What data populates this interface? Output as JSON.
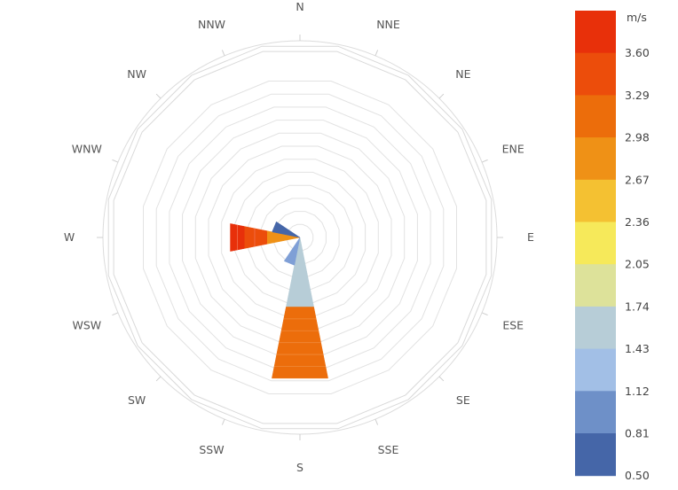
{
  "chart_data": {
    "type": "windrose",
    "unit": "m/s",
    "directions": [
      "N",
      "NNE",
      "NE",
      "ENE",
      "E",
      "ESE",
      "SE",
      "SSE",
      "S",
      "SSW",
      "SW",
      "WSW",
      "W",
      "WNW",
      "NW",
      "NNW"
    ],
    "ring_count": 12,
    "legend": {
      "unit_label": "m/s",
      "ticks": [
        "3.60",
        "3.29",
        "2.98",
        "2.67",
        "2.36",
        "2.05",
        "1.74",
        "1.43",
        "1.12",
        "0.81",
        "0.50"
      ],
      "colors_top_to_bottom": [
        "#e8300a",
        "#ec4d0b",
        "#ec6d0b",
        "#ef9116",
        "#f4c132",
        "#f6e95a",
        "#dde29a",
        "#b7cdd7",
        "#a2bfe6",
        "#6e90c8",
        "#4566a8"
      ]
    },
    "petals": [
      {
        "direction": "S",
        "segments": [
          {
            "band": "1.74-2.05",
            "color": "#b7cdd7",
            "from": 0,
            "to": 4
          },
          {
            "band": "3.29-3.60",
            "color": "#ec6d0b",
            "from": 4,
            "to": 8.1
          }
        ]
      },
      {
        "direction": "SSW",
        "segments": [
          {
            "band": "1.12-1.43",
            "color": "#7f9fd6",
            "from": 0,
            "to": 1.6
          }
        ]
      },
      {
        "direction": "W",
        "segments": [
          {
            "band": "2.67-2.98",
            "color": "#ef9116",
            "from": 0,
            "to": 1.9
          },
          {
            "band": "3.29-3.60",
            "color": "#ec4d0b",
            "from": 1.9,
            "to": 3.2
          },
          {
            "band": ">3.60",
            "color": "#e8300a",
            "from": 3.2,
            "to": 4.0
          }
        ]
      },
      {
        "direction": "WNW",
        "segments": [
          {
            "band": "0.50-0.81",
            "color": "#4566a8",
            "from": 0,
            "to": 1.6
          }
        ]
      }
    ]
  }
}
